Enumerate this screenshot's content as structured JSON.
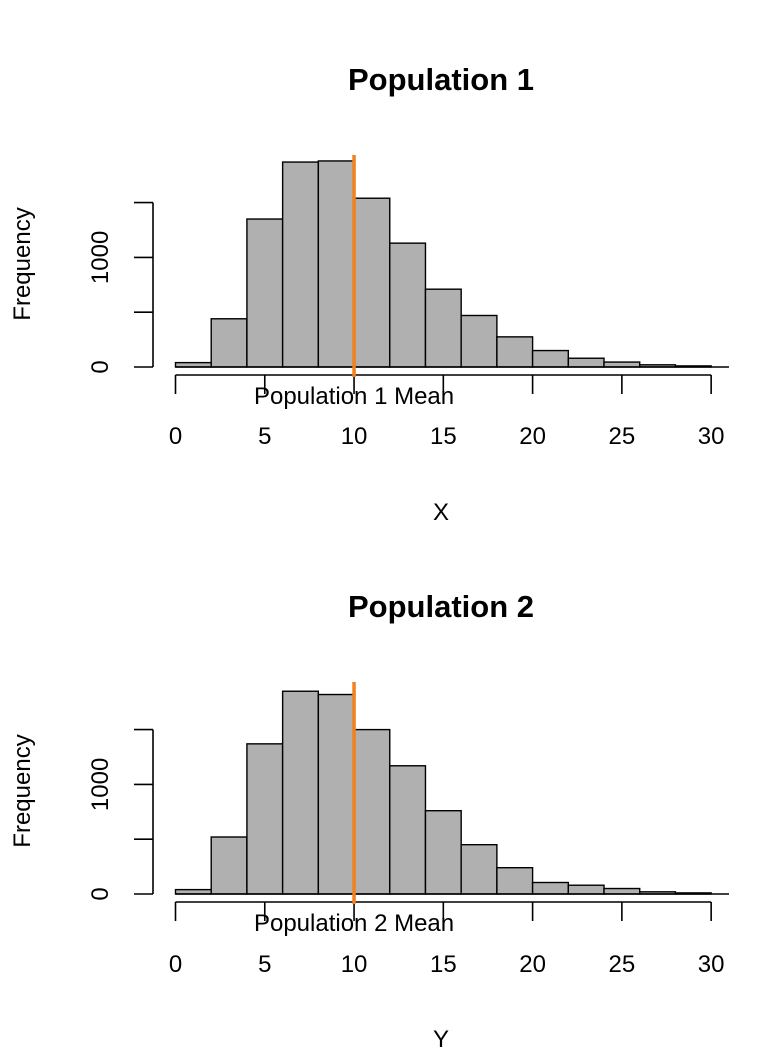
{
  "colors": {
    "bar_fill": "#b0b0b0",
    "bar_stroke": "#000000",
    "mean_line": "#f28120",
    "axis": "#000000"
  },
  "chart_data": [
    {
      "type": "bar",
      "subtype": "histogram",
      "title": "Population 1",
      "xlabel": "X",
      "ylabel": "Frequency",
      "bin_edges": [
        0,
        2,
        4,
        6,
        8,
        10,
        12,
        14,
        16,
        18,
        20,
        22,
        24,
        26,
        28,
        30
      ],
      "values": [
        40,
        440,
        1350,
        1870,
        1880,
        1540,
        1130,
        710,
        470,
        275,
        150,
        80,
        45,
        20,
        10
      ],
      "xlim": [
        0,
        31
      ],
      "ylim": [
        0,
        1600
      ],
      "x_ticks": [
        0,
        5,
        10,
        15,
        20,
        25,
        30
      ],
      "x_tick_labels": [
        "0",
        "5",
        "10",
        "15",
        "20",
        "25",
        "30"
      ],
      "y_ticks": [
        0,
        500,
        1000,
        1500
      ],
      "y_tick_labels": [
        "0",
        "",
        "1000",
        ""
      ],
      "mean_line": {
        "x": 10,
        "label": "Population 1 Mean"
      },
      "grid": false,
      "legend": "none"
    },
    {
      "type": "bar",
      "subtype": "histogram",
      "title": "Population 2",
      "xlabel": "Y",
      "ylabel": "Frequency",
      "bin_edges": [
        0,
        2,
        4,
        6,
        8,
        10,
        12,
        14,
        16,
        18,
        20,
        22,
        24,
        26,
        28,
        30
      ],
      "values": [
        40,
        520,
        1370,
        1850,
        1820,
        1500,
        1170,
        760,
        450,
        240,
        105,
        80,
        50,
        20,
        10
      ],
      "xlim": [
        0,
        31
      ],
      "ylim": [
        0,
        1600
      ],
      "x_ticks": [
        0,
        5,
        10,
        15,
        20,
        25,
        30
      ],
      "x_tick_labels": [
        "0",
        "5",
        "10",
        "15",
        "20",
        "25",
        "30"
      ],
      "y_ticks": [
        0,
        500,
        1000,
        1500
      ],
      "y_tick_labels": [
        "0",
        "",
        "1000",
        ""
      ],
      "mean_line": {
        "x": 10,
        "label": "Population 2 Mean"
      },
      "grid": false,
      "legend": "none"
    }
  ]
}
